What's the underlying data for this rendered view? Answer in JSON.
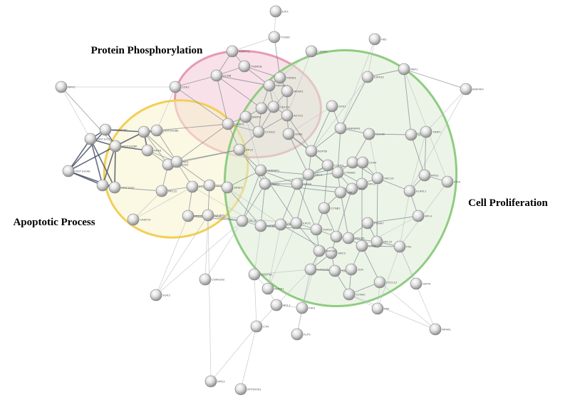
{
  "clusters": [
    {
      "id": "phosphorylation",
      "label": "Protein Phosphorylation",
      "fill": "#f2c9d6",
      "stroke": "#e89ab2"
    },
    {
      "id": "apoptotic",
      "label": "Apoptotic Process",
      "fill": "#f8f3cc",
      "stroke": "#f2cf55"
    },
    {
      "id": "proliferation",
      "label": "Cell Proliferation",
      "fill": "#dcebd4",
      "stroke": "#8fcc82"
    }
  ],
  "nodes": [
    {
      "id": "n1",
      "label": "EIF3"
    },
    {
      "id": "n2",
      "label": "TCEB2"
    },
    {
      "id": "n3",
      "label": "ANAPC2"
    },
    {
      "id": "n4",
      "label": "CAND1"
    },
    {
      "id": "n5",
      "label": "H83"
    },
    {
      "id": "n6",
      "label": "NFKC"
    },
    {
      "id": "n7",
      "label": "CCNB"
    },
    {
      "id": "n8",
      "label": "CDK2"
    },
    {
      "id": "n9",
      "label": "TUBA1B"
    },
    {
      "id": "n10",
      "label": "PSMD1"
    },
    {
      "id": "n11",
      "label": "PPP2R1A"
    },
    {
      "id": "n12",
      "label": "UBE2"
    },
    {
      "id": "n13",
      "label": "MKNK1"
    },
    {
      "id": "n14",
      "label": "CDC20"
    },
    {
      "id": "n15",
      "label": "EIF4G2"
    },
    {
      "id": "n16",
      "label": "RBX1"
    },
    {
      "id": "n17",
      "label": "MAP4K4"
    },
    {
      "id": "n18",
      "label": "SGK1"
    },
    {
      "id": "n19",
      "label": "HIST2H2AC"
    },
    {
      "id": "n20",
      "label": "HIST1H1C"
    },
    {
      "id": "n21",
      "label": "HIST1H2BK"
    },
    {
      "id": "n22",
      "label": "HIST1H2AE"
    },
    {
      "id": "n23",
      "label": "MKI67"
    },
    {
      "id": "n24",
      "label": "HIST1H4C"
    },
    {
      "id": "n25",
      "label": "HIST2H2BE"
    },
    {
      "id": "n26",
      "label": "HIST1H3J"
    },
    {
      "id": "n27",
      "label": "RPA3"
    },
    {
      "id": "n28",
      "label": "HIST1H3H"
    },
    {
      "id": "n29",
      "label": "NCL"
    },
    {
      "id": "n30",
      "label": "RPL22"
    },
    {
      "id": "n31",
      "label": "CASP14"
    },
    {
      "id": "n32",
      "label": "PTGDS"
    },
    {
      "id": "n33",
      "label": "DDX5"
    },
    {
      "id": "n34",
      "label": "POLR2A"
    },
    {
      "id": "n35",
      "label": "IGFBP3"
    },
    {
      "id": "n36",
      "label": "SRSF1"
    },
    {
      "id": "n37",
      "label": "CASP3"
    },
    {
      "id": "n38",
      "label": "BNIP3"
    },
    {
      "id": "n39",
      "label": "CCNG2"
    },
    {
      "id": "n40",
      "label": "ACTG1"
    },
    {
      "id": "n41",
      "label": "GNB1"
    },
    {
      "id": "n42",
      "label": "RPL5"
    },
    {
      "id": "n43",
      "label": "NOP56"
    },
    {
      "id": "n44",
      "label": "HNRNPA1"
    },
    {
      "id": "n45",
      "label": "CUL4B"
    },
    {
      "id": "n46",
      "label": "SF3B1"
    },
    {
      "id": "n47",
      "label": "TIMP1"
    },
    {
      "id": "n48",
      "label": "RPS2"
    },
    {
      "id": "n49",
      "label": "PPIA"
    },
    {
      "id": "n50",
      "label": "RPL4"
    },
    {
      "id": "n51",
      "label": "PSMA7"
    },
    {
      "id": "n52",
      "label": "RPL10"
    },
    {
      "id": "n53",
      "label": "FN1"
    },
    {
      "id": "n54",
      "label": "HNRNPU"
    },
    {
      "id": "n55",
      "label": "SMC1"
    },
    {
      "id": "n56",
      "label": "EIF4A"
    },
    {
      "id": "n57",
      "label": "DKC1"
    },
    {
      "id": "n58",
      "label": "CCND1"
    },
    {
      "id": "n59",
      "label": "CTNNB1"
    },
    {
      "id": "n60",
      "label": "EGFR"
    },
    {
      "id": "n61",
      "label": "CD44"
    },
    {
      "id": "n62",
      "label": "RPL3"
    },
    {
      "id": "n63",
      "label": "MYC"
    },
    {
      "id": "n64",
      "label": "VIM"
    },
    {
      "id": "n65",
      "label": "XRCC6"
    },
    {
      "id": "n66",
      "label": "ELAVL1"
    },
    {
      "id": "n67",
      "label": "CSNK2A2"
    },
    {
      "id": "n68",
      "label": "SGK3"
    },
    {
      "id": "n69",
      "label": "SQSTM1"
    },
    {
      "id": "n70",
      "label": "RUNX1"
    },
    {
      "id": "n71",
      "label": "MCL1"
    },
    {
      "id": "n72",
      "label": "CTR"
    },
    {
      "id": "n73",
      "label": "KLF5"
    },
    {
      "id": "n74",
      "label": "PIAS"
    },
    {
      "id": "n75",
      "label": "PAK"
    },
    {
      "id": "n76",
      "label": "ATP6V0D1"
    },
    {
      "id": "n77",
      "label": "RPE3"
    },
    {
      "id": "n78",
      "label": "NR4A1"
    },
    {
      "id": "n79",
      "label": "SMTN"
    },
    {
      "id": "n80",
      "label": "RPL8"
    },
    {
      "id": "n81",
      "label": "IGFBP7"
    },
    {
      "id": "n82",
      "label": "ERCC1"
    },
    {
      "id": "n83",
      "label": "KIF2C"
    },
    {
      "id": "n84",
      "label": "TOP2A"
    },
    {
      "id": "n85",
      "label": "CCNB1"
    },
    {
      "id": "n86",
      "label": "MYO9B"
    },
    {
      "id": "n87",
      "label": "PDCD6"
    },
    {
      "id": "n88",
      "label": "CTGF"
    },
    {
      "id": "n89",
      "label": "SMC2"
    },
    {
      "id": "n90",
      "label": "MAP2K1"
    },
    {
      "id": "n91",
      "label": "GADD45A"
    },
    {
      "id": "n92",
      "label": "TGFB1"
    },
    {
      "id": "n93",
      "label": "JUN"
    },
    {
      "id": "n94",
      "label": "CCNA2"
    },
    {
      "id": "n95",
      "label": "CXCL12"
    }
  ]
}
